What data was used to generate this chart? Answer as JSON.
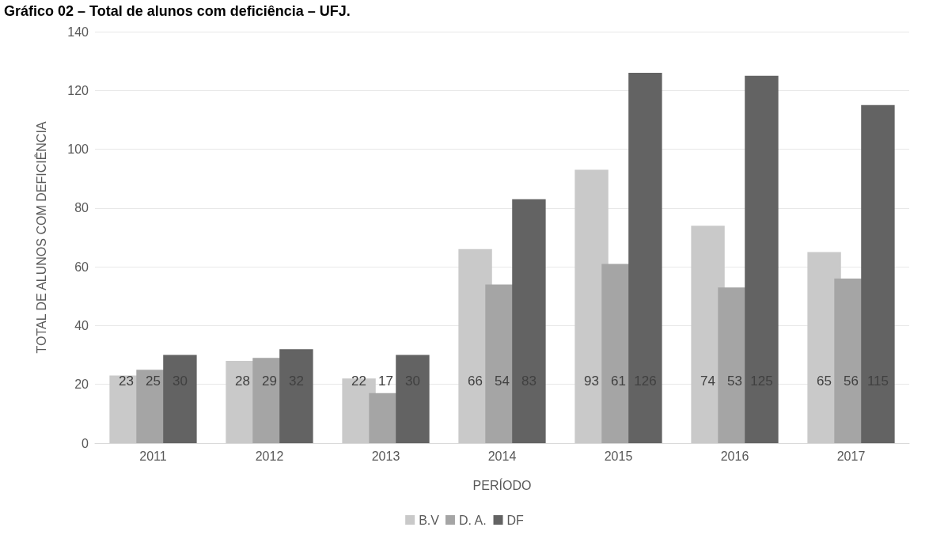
{
  "chart_data": {
    "type": "bar",
    "title": "Gráfico 02 – Total de alunos com deficiência – UFJ.",
    "xlabel": "PERÍODO",
    "ylabel": "TOTAL DE ALUNOS COM DEFICIÊNCIA",
    "categories": [
      "2011",
      "2012",
      "2013",
      "2014",
      "2015",
      "2016",
      "2017"
    ],
    "series": [
      {
        "name": "B.V",
        "color": "#c9c9c9",
        "values": [
          23,
          28,
          22,
          66,
          93,
          74,
          65
        ]
      },
      {
        "name": "D. A.",
        "color": "#a5a5a5",
        "values": [
          25,
          29,
          17,
          54,
          61,
          53,
          56
        ]
      },
      {
        "name": "DF",
        "color": "#636363",
        "values": [
          30,
          32,
          30,
          83,
          126,
          125,
          115
        ]
      }
    ],
    "ylim": [
      0,
      140
    ],
    "yticks": [
      0,
      20,
      40,
      60,
      80,
      100,
      120,
      140
    ],
    "grid": "y",
    "legend": "bottom",
    "data_labels": true
  }
}
